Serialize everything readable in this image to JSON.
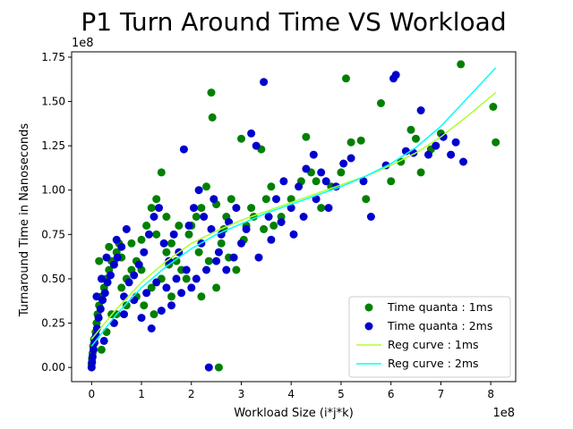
{
  "chart_data": {
    "type": "scatter",
    "title": "P1 Turn Around Time VS Workload",
    "xlabel": "Workload Size (i*j*k)",
    "ylabel": "Turnaround Time in Nanoseconds",
    "x_offset_label": "1e8",
    "y_offset_label": "1e8",
    "xlim": [
      -0.4,
      8.5
    ],
    "ylim": [
      -0.08,
      1.78
    ],
    "x_ticks": [
      0,
      1,
      2,
      3,
      4,
      5,
      6,
      7,
      8
    ],
    "x_tick_labels": [
      "0",
      "1",
      "2",
      "3",
      "4",
      "5",
      "6",
      "7",
      "8"
    ],
    "y_ticks": [
      0,
      0.25,
      0.5,
      0.75,
      1.0,
      1.25,
      1.5,
      1.75
    ],
    "y_tick_labels": [
      "0.00",
      "0.25",
      "0.50",
      "0.75",
      "1.00",
      "1.25",
      "1.50",
      "1.75"
    ],
    "grid": false,
    "legend_position": "bottom-right",
    "series": [
      {
        "name": "Time quanta : 1ms",
        "kind": "scatter",
        "color": "#008000",
        "points": [
          [
            0,
            0.02
          ],
          [
            0.01,
            0.05
          ],
          [
            0.02,
            0.08
          ],
          [
            0.03,
            0.12
          ],
          [
            0.05,
            0.16
          ],
          [
            0.08,
            0.2
          ],
          [
            0.1,
            0.25
          ],
          [
            0.12,
            0.3
          ],
          [
            0.15,
            0.35
          ],
          [
            0.2,
            0.4
          ],
          [
            0.25,
            0.45
          ],
          [
            0.3,
            0.5
          ],
          [
            0.35,
            0.55
          ],
          [
            0.4,
            0.6
          ],
          [
            0.5,
            0.65
          ],
          [
            0.55,
            0.7
          ],
          [
            0.6,
            0.45
          ],
          [
            0.7,
            0.5
          ],
          [
            0.8,
            0.55
          ],
          [
            0.9,
            0.6
          ],
          [
            1.0,
            0.72
          ],
          [
            1.1,
            0.8
          ],
          [
            1.2,
            0.9
          ],
          [
            1.3,
            0.95
          ],
          [
            1.4,
            1.1
          ],
          [
            1.5,
            0.85
          ],
          [
            1.6,
            0.7
          ],
          [
            1.7,
            0.6
          ],
          [
            1.8,
            0.55
          ],
          [
            1.9,
            0.5
          ],
          [
            2.0,
            0.8
          ],
          [
            2.1,
            0.85
          ],
          [
            2.2,
            0.9
          ],
          [
            2.3,
            1.02
          ],
          [
            2.4,
            1.55
          ],
          [
            2.42,
            1.41
          ],
          [
            2.5,
            0.92
          ],
          [
            2.55,
            0.0
          ],
          [
            2.6,
            0.7
          ],
          [
            2.7,
            0.85
          ],
          [
            2.8,
            0.95
          ],
          [
            2.9,
            0.55
          ],
          [
            3.0,
            1.29
          ],
          [
            3.1,
            0.8
          ],
          [
            3.2,
            0.9
          ],
          [
            3.4,
            1.23
          ],
          [
            3.5,
            0.95
          ],
          [
            3.6,
            1.02
          ],
          [
            3.8,
            0.85
          ],
          [
            4.0,
            0.95
          ],
          [
            4.2,
            1.05
          ],
          [
            4.3,
            1.3
          ],
          [
            4.4,
            1.1
          ],
          [
            4.5,
            1.05
          ],
          [
            4.6,
            0.9
          ],
          [
            4.8,
            1.02
          ],
          [
            5.0,
            1.1
          ],
          [
            5.1,
            1.63
          ],
          [
            5.2,
            1.27
          ],
          [
            5.4,
            1.28
          ],
          [
            5.5,
            0.95
          ],
          [
            5.8,
            1.49
          ],
          [
            6.0,
            1.05
          ],
          [
            6.2,
            1.16
          ],
          [
            6.4,
            1.34
          ],
          [
            6.5,
            1.29
          ],
          [
            6.6,
            1.1
          ],
          [
            6.8,
            1.23
          ],
          [
            7.0,
            1.32
          ],
          [
            7.4,
            1.71
          ],
          [
            8.05,
            1.47
          ],
          [
            8.1,
            1.27
          ],
          [
            0.3,
            0.2
          ],
          [
            0.5,
            0.3
          ],
          [
            0.7,
            0.35
          ],
          [
            0.9,
            0.4
          ],
          [
            1.2,
            0.45
          ],
          [
            1.4,
            0.5
          ],
          [
            1.6,
            0.4
          ],
          [
            2.2,
            0.4
          ],
          [
            2.5,
            0.45
          ],
          [
            1.0,
            0.55
          ],
          [
            0.8,
            0.7
          ],
          [
            0.6,
            0.62
          ],
          [
            1.3,
            0.75
          ],
          [
            1.5,
            0.65
          ],
          [
            0.4,
            0.3
          ],
          [
            0.2,
            0.1
          ],
          [
            0.15,
            0.6
          ],
          [
            0.35,
            0.68
          ],
          [
            0.45,
            0.6
          ],
          [
            1.05,
            0.35
          ],
          [
            1.25,
            0.3
          ],
          [
            1.55,
            0.58
          ],
          [
            1.75,
            0.8
          ],
          [
            1.95,
            0.75
          ],
          [
            2.15,
            0.65
          ],
          [
            2.35,
            0.6
          ],
          [
            2.65,
            0.78
          ],
          [
            2.75,
            0.62
          ],
          [
            3.05,
            0.72
          ],
          [
            3.25,
            0.85
          ],
          [
            3.45,
            0.78
          ],
          [
            3.65,
            0.8
          ]
        ]
      },
      {
        "name": "Time quanta : 2ms",
        "kind": "scatter",
        "color": "#0000CD",
        "points": [
          [
            0,
            0.0
          ],
          [
            0.01,
            0.03
          ],
          [
            0.02,
            0.06
          ],
          [
            0.04,
            0.1
          ],
          [
            0.06,
            0.14
          ],
          [
            0.09,
            0.18
          ],
          [
            0.11,
            0.22
          ],
          [
            0.14,
            0.28
          ],
          [
            0.18,
            0.33
          ],
          [
            0.22,
            0.38
          ],
          [
            0.27,
            0.42
          ],
          [
            0.32,
            0.48
          ],
          [
            0.38,
            0.52
          ],
          [
            0.45,
            0.58
          ],
          [
            0.52,
            0.62
          ],
          [
            0.6,
            0.68
          ],
          [
            0.65,
            0.4
          ],
          [
            0.75,
            0.48
          ],
          [
            0.85,
            0.52
          ],
          [
            0.95,
            0.58
          ],
          [
            1.05,
            0.65
          ],
          [
            1.15,
            0.75
          ],
          [
            1.25,
            0.85
          ],
          [
            1.35,
            0.9
          ],
          [
            1.45,
            0.7
          ],
          [
            1.55,
            0.6
          ],
          [
            1.65,
            0.75
          ],
          [
            1.75,
            0.65
          ],
          [
            1.85,
            1.23
          ],
          [
            1.95,
            0.8
          ],
          [
            2.05,
            0.9
          ],
          [
            2.15,
            1.0
          ],
          [
            2.25,
            0.85
          ],
          [
            2.35,
            0.0
          ],
          [
            2.45,
            0.95
          ],
          [
            2.6,
            0.75
          ],
          [
            2.75,
            0.82
          ],
          [
            2.9,
            0.9
          ],
          [
            3.0,
            0.7
          ],
          [
            3.2,
            1.32
          ],
          [
            3.3,
            1.25
          ],
          [
            3.45,
            1.61
          ],
          [
            3.55,
            0.85
          ],
          [
            3.7,
            0.95
          ],
          [
            3.85,
            1.05
          ],
          [
            4.0,
            0.9
          ],
          [
            4.15,
            1.02
          ],
          [
            4.3,
            1.12
          ],
          [
            4.45,
            1.2
          ],
          [
            4.6,
            1.1
          ],
          [
            4.75,
            0.9
          ],
          [
            4.9,
            1.02
          ],
          [
            5.05,
            1.15
          ],
          [
            5.2,
            1.18
          ],
          [
            5.45,
            1.05
          ],
          [
            5.6,
            0.85
          ],
          [
            5.9,
            1.14
          ],
          [
            6.05,
            1.63
          ],
          [
            6.1,
            1.65
          ],
          [
            6.3,
            1.22
          ],
          [
            6.45,
            1.21
          ],
          [
            6.6,
            1.45
          ],
          [
            6.75,
            1.2
          ],
          [
            6.9,
            1.25
          ],
          [
            7.05,
            1.3
          ],
          [
            7.2,
            1.2
          ],
          [
            7.3,
            1.27
          ],
          [
            7.45,
            1.16
          ],
          [
            0.25,
            0.15
          ],
          [
            0.45,
            0.25
          ],
          [
            0.65,
            0.3
          ],
          [
            0.85,
            0.38
          ],
          [
            1.1,
            0.42
          ],
          [
            1.3,
            0.48
          ],
          [
            1.5,
            0.45
          ],
          [
            1.7,
            0.5
          ],
          [
            1.9,
            0.55
          ],
          [
            2.1,
            0.5
          ],
          [
            2.3,
            0.55
          ],
          [
            2.5,
            0.6
          ],
          [
            0.3,
            0.62
          ],
          [
            0.5,
            0.72
          ],
          [
            0.7,
            0.78
          ],
          [
            0.2,
            0.5
          ],
          [
            0.1,
            0.4
          ],
          [
            1.0,
            0.28
          ],
          [
            1.2,
            0.22
          ],
          [
            1.4,
            0.32
          ],
          [
            1.6,
            0.35
          ],
          [
            1.8,
            0.42
          ],
          [
            2.0,
            0.45
          ],
          [
            2.2,
            0.7
          ],
          [
            2.4,
            0.78
          ],
          [
            2.55,
            0.65
          ],
          [
            2.7,
            0.55
          ],
          [
            2.85,
            0.62
          ],
          [
            3.1,
            0.78
          ],
          [
            3.35,
            0.62
          ],
          [
            3.6,
            0.72
          ],
          [
            3.8,
            0.82
          ],
          [
            4.05,
            0.75
          ],
          [
            4.25,
            0.85
          ],
          [
            4.5,
            0.95
          ],
          [
            4.7,
            1.05
          ]
        ]
      },
      {
        "name": "Reg curve : 1ms",
        "kind": "line",
        "color": "#ADFF2F",
        "points": [
          [
            0,
            0.16
          ],
          [
            0.5,
            0.33
          ],
          [
            1,
            0.48
          ],
          [
            1.5,
            0.6
          ],
          [
            2,
            0.7
          ],
          [
            2.5,
            0.77
          ],
          [
            3,
            0.83
          ],
          [
            3.5,
            0.88
          ],
          [
            4,
            0.93
          ],
          [
            4.5,
            0.98
          ],
          [
            5,
            1.03
          ],
          [
            5.5,
            1.08
          ],
          [
            6,
            1.14
          ],
          [
            6.5,
            1.21
          ],
          [
            7,
            1.3
          ],
          [
            7.5,
            1.41
          ],
          [
            8.1,
            1.55
          ]
        ]
      },
      {
        "name": "Reg curve : 2ms",
        "kind": "line",
        "color": "#00FFFF",
        "points": [
          [
            0,
            0.12
          ],
          [
            0.5,
            0.3
          ],
          [
            1,
            0.45
          ],
          [
            1.5,
            0.57
          ],
          [
            2,
            0.67
          ],
          [
            2.5,
            0.75
          ],
          [
            3,
            0.81
          ],
          [
            3.5,
            0.87
          ],
          [
            4,
            0.92
          ],
          [
            4.5,
            0.97
          ],
          [
            5,
            1.02
          ],
          [
            5.5,
            1.08
          ],
          [
            6,
            1.15
          ],
          [
            6.5,
            1.24
          ],
          [
            7,
            1.36
          ],
          [
            7.5,
            1.51
          ],
          [
            8.1,
            1.69
          ]
        ]
      }
    ]
  }
}
